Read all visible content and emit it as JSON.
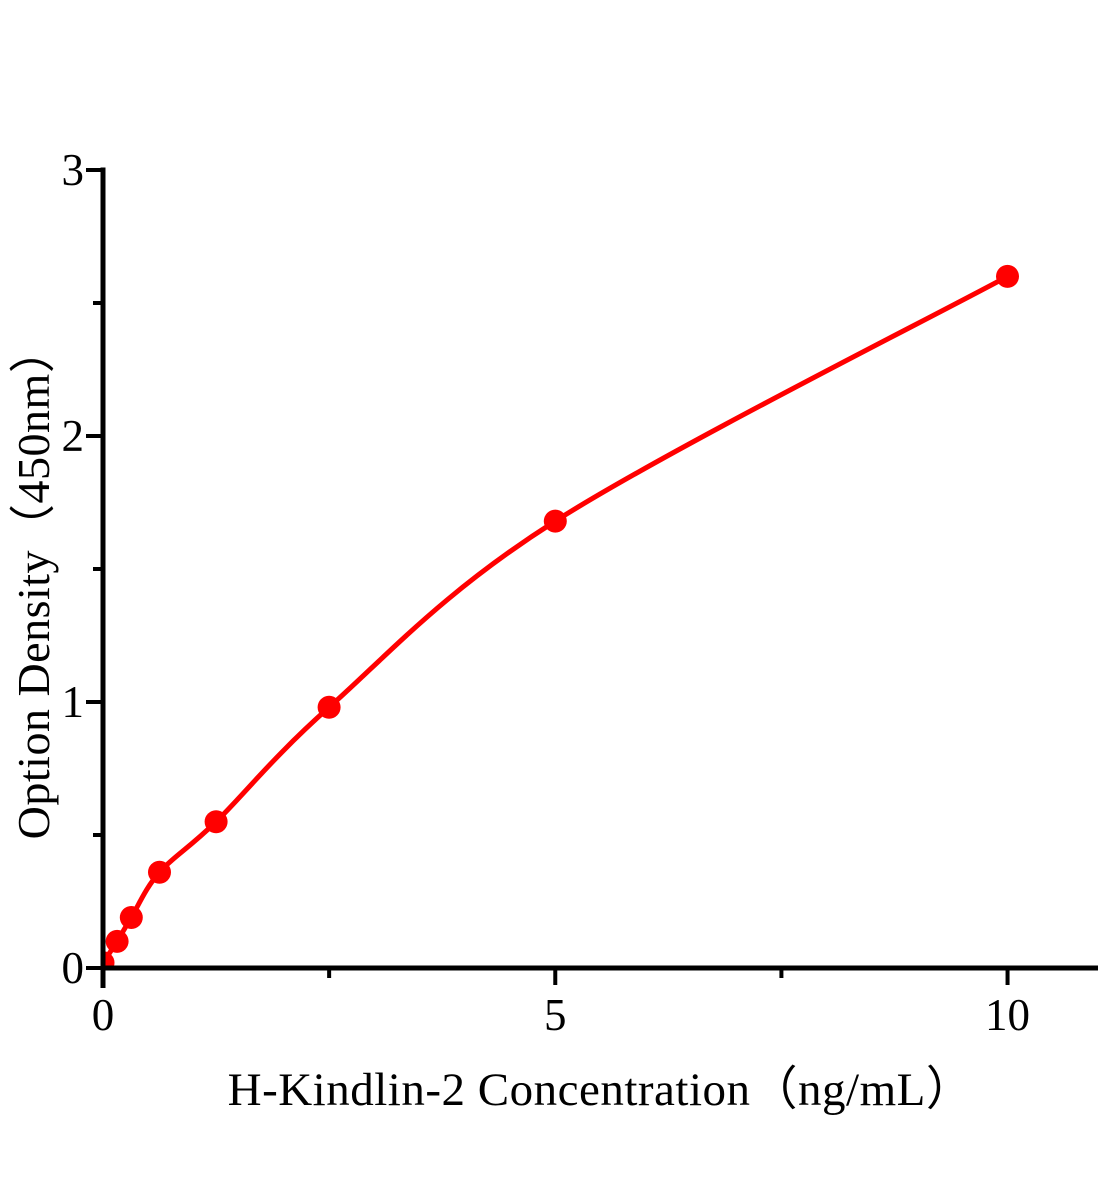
{
  "chart_data": {
    "type": "scatter",
    "title": "",
    "xlabel": "H-Kindlin-2 Concentration（ng/mL）",
    "ylabel": "Option Density（450nm）",
    "points": [
      {
        "x": 0,
        "y": 0.02
      },
      {
        "x": 0.156,
        "y": 0.1
      },
      {
        "x": 0.3125,
        "y": 0.19
      },
      {
        "x": 0.625,
        "y": 0.36
      },
      {
        "x": 1.25,
        "y": 0.55
      },
      {
        "x": 2.5,
        "y": 0.98
      },
      {
        "x": 5,
        "y": 1.68
      },
      {
        "x": 10,
        "y": 2.6
      }
    ],
    "fit": "smooth curve through points",
    "xlim": [
      0,
      11
    ],
    "ylim": [
      0,
      3
    ],
    "x_major_ticks": [
      0,
      5,
      10
    ],
    "x_minor_ticks": [
      2.5,
      7.5
    ],
    "y_major_ticks": [
      0,
      1,
      2,
      3
    ],
    "y_minor_ticks": [
      0.5,
      1.5,
      2.5
    ],
    "grid": false,
    "legend": false,
    "curve_color": "#ff0000",
    "marker_color": "#ff0000",
    "marker": "circle",
    "axis_color": "#000000",
    "background_color": "#ffffff"
  }
}
